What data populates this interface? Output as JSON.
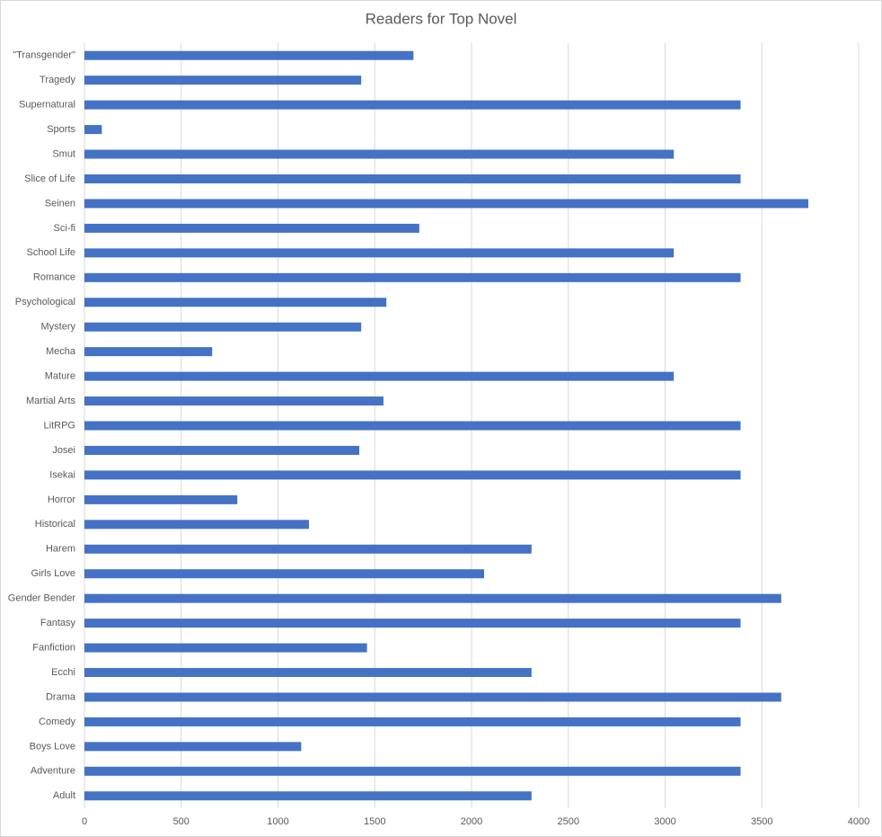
{
  "chart_data": {
    "type": "bar",
    "orientation": "horizontal",
    "title": "Readers for Top Novel",
    "categories": [
      "\"Transgender\"",
      "Tragedy",
      "Supernatural",
      "Sports",
      "Smut",
      "Slice of Life",
      "Seinen",
      "Sci-fi",
      "School Life",
      "Romance",
      "Psychological",
      "Mystery",
      "Mecha",
      "Mature",
      "Martial Arts",
      "LitRPG",
      "Josei",
      "Isekai",
      "Horror",
      "Historical",
      "Harem",
      "Girls Love",
      "Gender Bender",
      "Fantasy",
      "Fanfiction",
      "Ecchi",
      "Drama",
      "Comedy",
      "Boys Love",
      "Adventure",
      "Adult"
    ],
    "values": [
      1700,
      1430,
      3390,
      90,
      3045,
      3390,
      3740,
      1730,
      3045,
      3390,
      1560,
      1430,
      660,
      3045,
      1545,
      3390,
      1420,
      3390,
      790,
      1160,
      2310,
      2065,
      3600,
      3390,
      1460,
      2310,
      3600,
      3390,
      1120,
      3390,
      2310
    ],
    "color": "#4472c4",
    "xlim": [
      0,
      4000
    ],
    "xticks": [
      0,
      500,
      1000,
      1500,
      2000,
      2500,
      3000,
      3500,
      4000
    ],
    "grid": true
  }
}
